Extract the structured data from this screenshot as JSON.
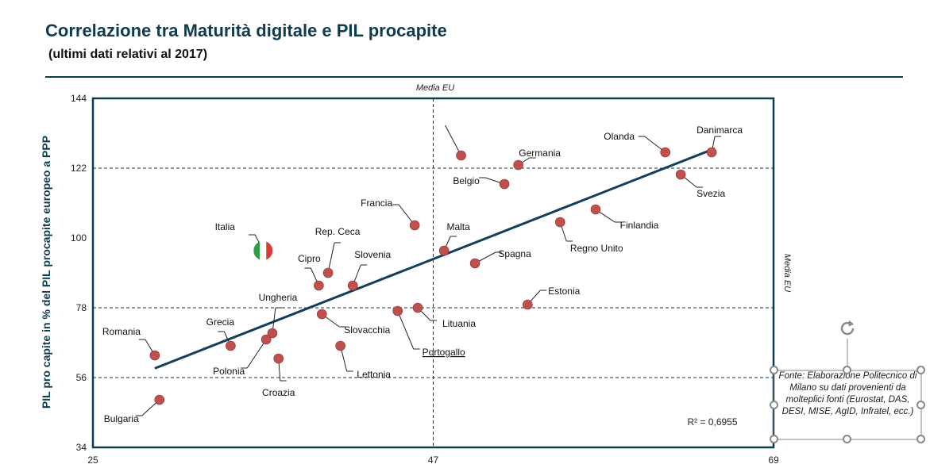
{
  "title": "Correlazione tra Maturità digitale e PIL procapite",
  "subtitle": "(ultimi dati relativi al 2017)",
  "note": "Fonte: Elaborazione Politecnico di Milano su dati provenienti da molteplici fonti (Eurostat, DAS, DESI, MISE, AgID, Infratel, ecc.)",
  "colors": {
    "point": "#c0504d",
    "trend": "#123f5a",
    "frame": "#0d3b4f",
    "ref": "#0d3b4f"
  },
  "chart_data": {
    "type": "scatter",
    "title": "Correlazione tra Maturità digitale e PIL procapite",
    "xlabel": "",
    "ylabel": "PIL pro capite in % del PIL procapite europeo a PPP",
    "xlim": [
      25,
      69
    ],
    "ylim": [
      34,
      144
    ],
    "x_ticks": [
      25,
      47,
      69
    ],
    "y_ticks": [
      34,
      56,
      78,
      100,
      122,
      144
    ],
    "reference_lines": {
      "x": 47,
      "y": [
        56,
        78,
        122
      ],
      "x_label": "Media EU",
      "y_label": "Media EU"
    },
    "r2_label": "R² = 0,6955",
    "trendline": {
      "x": [
        29,
        65.2
      ],
      "y": [
        58.9,
        128.2
      ]
    },
    "points": [
      {
        "name": "Danimarca",
        "x": 65.0,
        "y": 127.0
      },
      {
        "name": "Olanda",
        "x": 62.0,
        "y": 127.0
      },
      {
        "name": "",
        "x": 48.8,
        "y": 126.0
      },
      {
        "name": "Germania",
        "x": 52.5,
        "y": 123.0
      },
      {
        "name": "Svezia",
        "x": 63.0,
        "y": 120.0
      },
      {
        "name": "Belgio",
        "x": 51.6,
        "y": 117.0
      },
      {
        "name": "Finlandia",
        "x": 57.5,
        "y": 109.0
      },
      {
        "name": "Regno Unito",
        "x": 55.2,
        "y": 105.0
      },
      {
        "name": "Francia",
        "x": 45.8,
        "y": 104.0
      },
      {
        "name": "Malta",
        "x": 47.7,
        "y": 96.0
      },
      {
        "name": "Spagna",
        "x": 49.7,
        "y": 92.0
      },
      {
        "name": "Italia",
        "x": 36.0,
        "y": 96.0
      },
      {
        "name": "Rep. Ceca",
        "x": 40.2,
        "y": 89.0
      },
      {
        "name": "Cipro",
        "x": 39.6,
        "y": 85.0
      },
      {
        "name": "Slovenia",
        "x": 41.8,
        "y": 85.0
      },
      {
        "name": "Estonia",
        "x": 53.1,
        "y": 79.0
      },
      {
        "name": "Lituania",
        "x": 46.0,
        "y": 78.0
      },
      {
        "name": "Portogallo",
        "x": 44.7,
        "y": 77.0
      },
      {
        "name": "Slovacchia",
        "x": 39.8,
        "y": 76.0
      },
      {
        "name": "Ungheria",
        "x": 36.6,
        "y": 70.0
      },
      {
        "name": "Polonia",
        "x": 36.2,
        "y": 68.0
      },
      {
        "name": "Grecia",
        "x": 33.9,
        "y": 66.0
      },
      {
        "name": "Lettonia",
        "x": 41.0,
        "y": 66.0
      },
      {
        "name": "Croazia",
        "x": 37.0,
        "y": 62.0
      },
      {
        "name": "Romania",
        "x": 29.0,
        "y": 63.0
      },
      {
        "name": "Bulgaria",
        "x": 29.3,
        "y": 49.0
      }
    ]
  }
}
